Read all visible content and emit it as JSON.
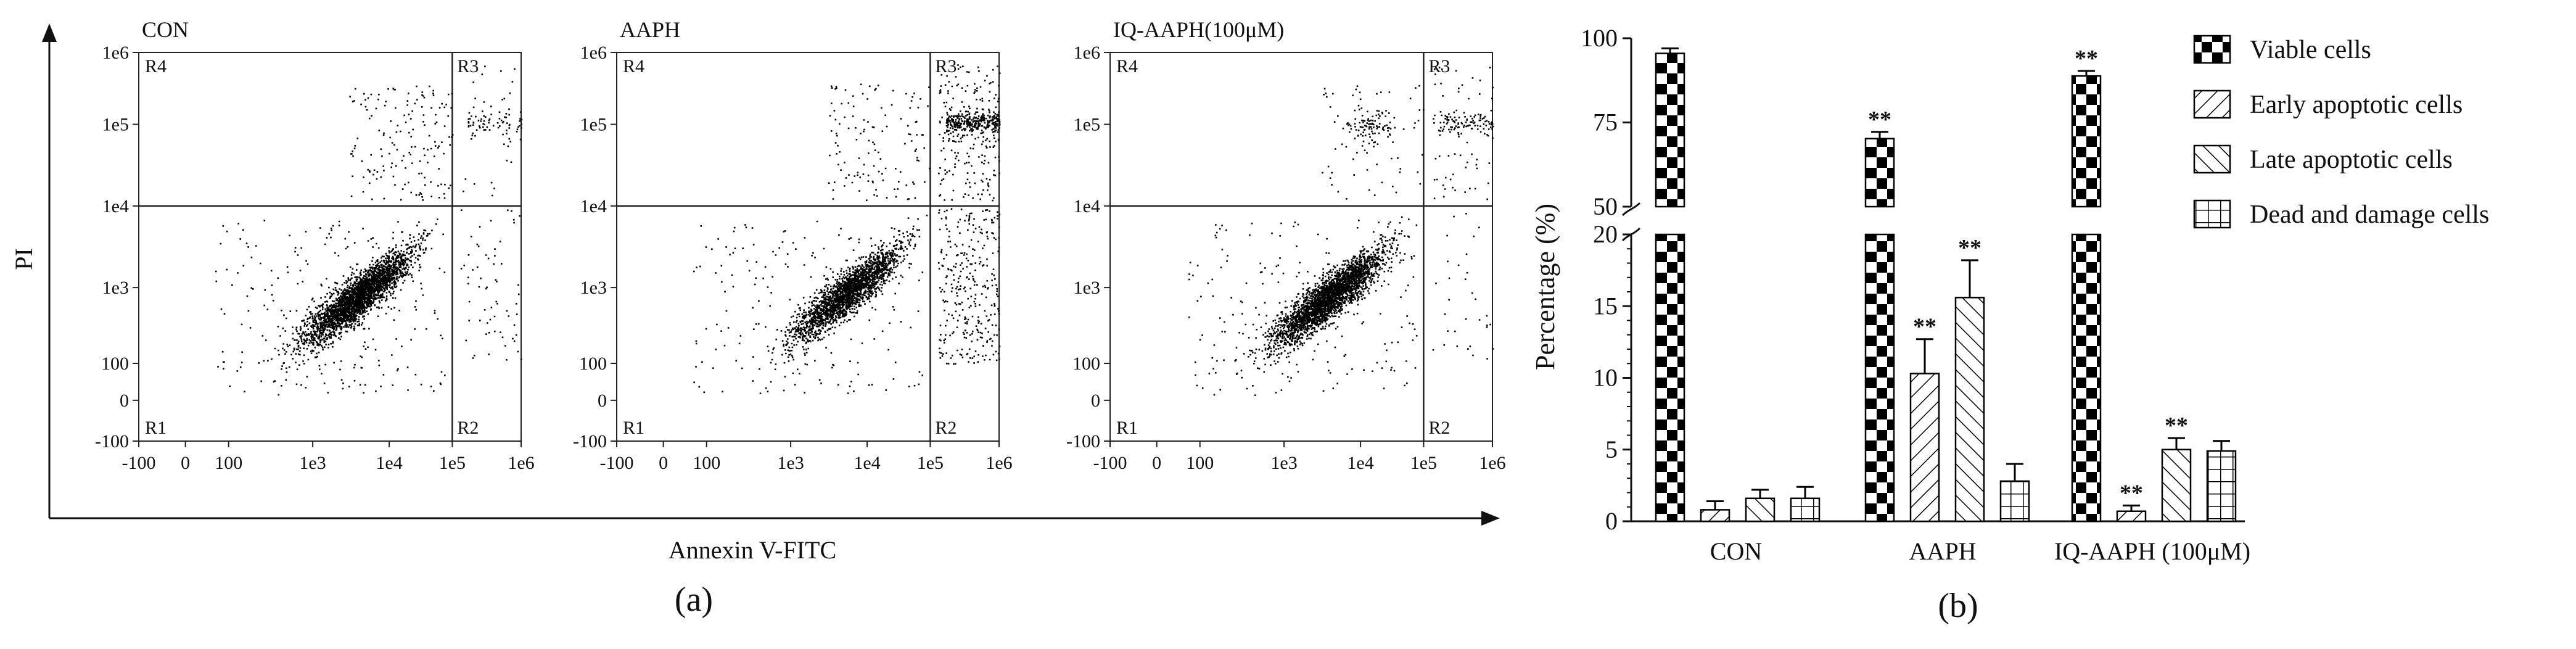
{
  "panel_a": {
    "caption": "(a)",
    "x_axis_title": "Annexin V-FITC",
    "y_axis_title": "PI",
    "x_ticks": [
      "-100",
      "0",
      "100",
      "1e3",
      "1e4",
      "1e5",
      "1e6"
    ],
    "y_ticks": [
      "-100",
      "0",
      "100",
      "1e3",
      "1e4",
      "1e5",
      "1e6"
    ],
    "region_labels": [
      "R1",
      "R2",
      "R3",
      "R4"
    ],
    "plots": [
      {
        "title": "CON",
        "gate": {
          "x": "1e5",
          "y": "1e4"
        },
        "quadrant_density": {
          "R1": 0.9,
          "R2": 0.02,
          "R3": 0.03,
          "R4": 0.05
        }
      },
      {
        "title": "AAPH",
        "gate": {
          "x": "1e5",
          "y": "1e4"
        },
        "quadrant_density": {
          "R1": 0.7,
          "R2": 0.1,
          "R3": 0.16,
          "R4": 0.04
        }
      },
      {
        "title": "IQ-AAPH(100μM)",
        "gate": {
          "x": "1e5",
          "y": "1e4"
        },
        "quadrant_density": {
          "R1": 0.89,
          "R2": 0.01,
          "R3": 0.05,
          "R4": 0.05
        }
      }
    ]
  },
  "panel_b": {
    "caption": "(b)",
    "significance_marker": "**",
    "chart_data": {
      "type": "bar",
      "categories": [
        "CON",
        "AAPH",
        "IQ-AAPH (100μM)"
      ],
      "ylabel": "Percentage (%)",
      "axis_break": {
        "lower": [
          0,
          20
        ],
        "upper": [
          50,
          100
        ]
      },
      "y_ticks_lower": [
        "0",
        "5",
        "10",
        "15",
        "20"
      ],
      "y_ticks_upper": [
        "50",
        "75",
        "100"
      ],
      "legend_position": "top-right",
      "series": [
        {
          "name": "Viable cells",
          "pattern": "checker",
          "values": [
            95.5,
            70.2,
            88.8
          ],
          "errors": [
            1.5,
            2.0,
            1.5
          ],
          "significant": [
            false,
            true,
            true
          ]
        },
        {
          "name": "Early apoptotic cells",
          "pattern": "diag-right",
          "values": [
            0.8,
            10.3,
            0.7
          ],
          "errors": [
            0.6,
            2.4,
            0.4
          ],
          "significant": [
            false,
            true,
            true
          ]
        },
        {
          "name": "Late apoptotic cells",
          "pattern": "diag-left",
          "values": [
            1.6,
            15.6,
            5.0
          ],
          "errors": [
            0.6,
            2.6,
            0.8
          ],
          "significant": [
            false,
            true,
            true
          ]
        },
        {
          "name": "Dead and damage cells",
          "pattern": "grid",
          "values": [
            1.6,
            2.8,
            4.9
          ],
          "errors": [
            0.8,
            1.2,
            0.7
          ],
          "significant": [
            false,
            false,
            false
          ]
        }
      ]
    }
  }
}
